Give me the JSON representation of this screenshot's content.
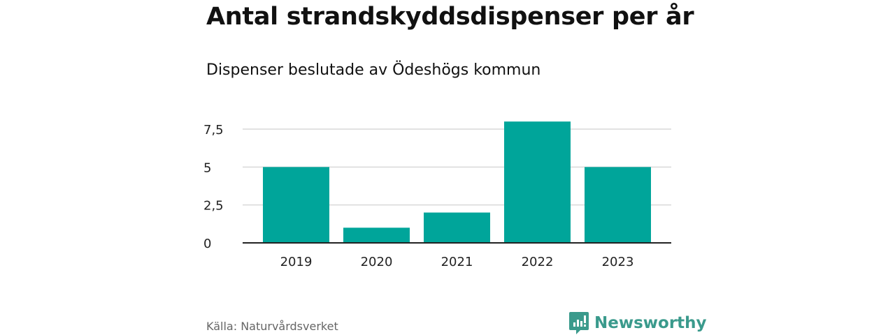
{
  "chart_data": {
    "type": "bar",
    "title": "Antal strandskyddsdispenser per år",
    "subtitle": "Dispenser beslutade av Ödeshögs kommun",
    "categories": [
      "2019",
      "2020",
      "2021",
      "2022",
      "2023"
    ],
    "values": [
      5,
      1,
      2,
      8,
      5
    ],
    "xlabel": "",
    "ylabel": "",
    "ylim": [
      0,
      8
    ],
    "yticks": [
      0,
      2.5,
      5,
      7.5
    ],
    "ytick_labels": [
      "0",
      "2,5",
      "5",
      "7,5"
    ],
    "grid": true,
    "bar_color": "#00a59a"
  },
  "footer": {
    "source": "Källa: Naturvårdsverket",
    "brand": "Newsworthy",
    "brand_color": "#3a9a8c"
  }
}
